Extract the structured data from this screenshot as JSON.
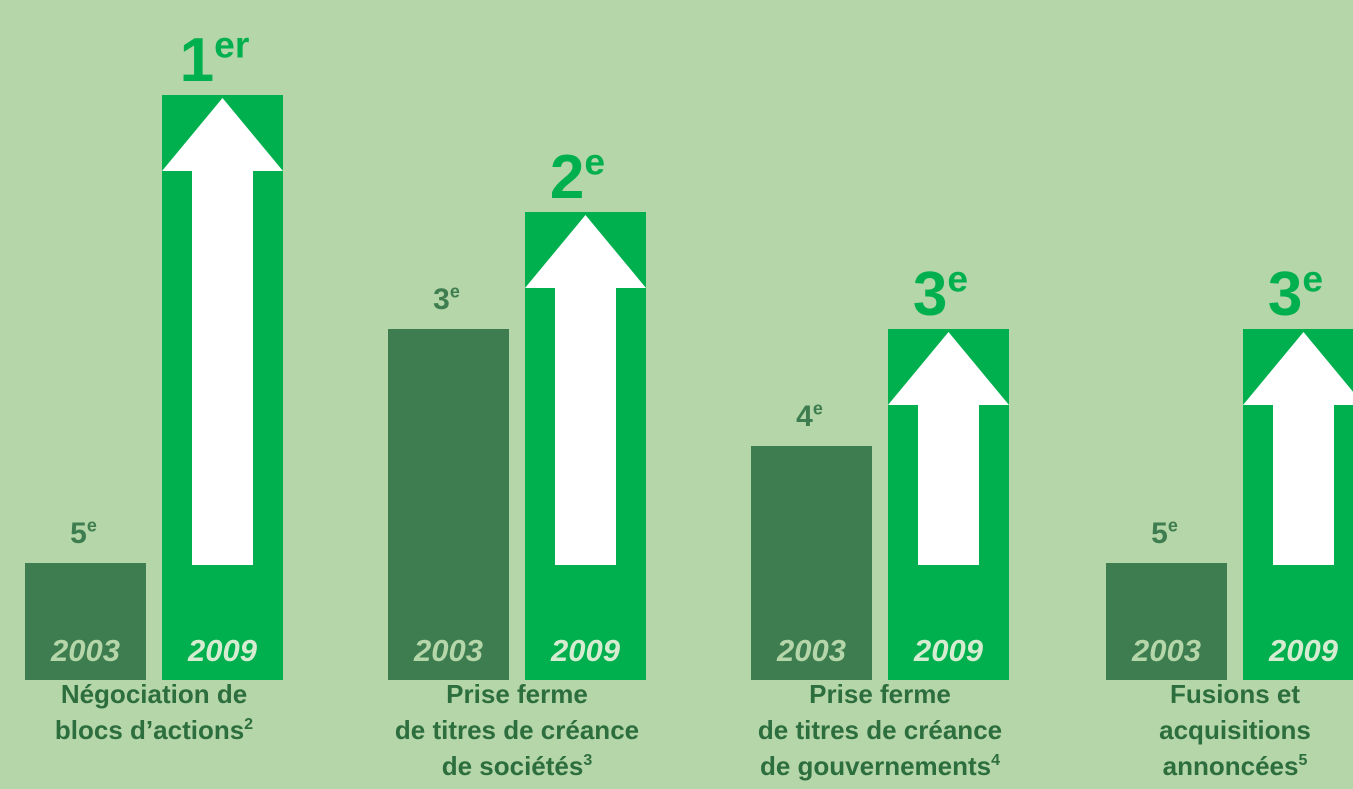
{
  "chart_data": {
    "type": "bar",
    "categories": [
      [
        "Négociation de",
        "blocs d’actions"
      ],
      [
        "Prise ferme",
        "de titres de créance",
        "de sociétés"
      ],
      [
        "Prise ferme",
        "de titres de créance",
        "de gouvernements"
      ],
      [
        "Fusions et",
        "acquisitions",
        "annoncées"
      ]
    ],
    "footnotes": [
      2,
      3,
      4,
      5
    ],
    "series": [
      {
        "name": "2003",
        "color": "#3d7d50",
        "values": [
          5,
          3,
          4,
          5
        ],
        "value_labels": [
          "5e",
          "3e",
          "4e",
          "5e"
        ]
      },
      {
        "name": "2009",
        "color": "#00b04f",
        "values": [
          1,
          2,
          3,
          3
        ],
        "value_labels": [
          "1er",
          "2e",
          "3e",
          "3e"
        ]
      }
    ],
    "ylim": [
      6,
      0
    ]
  }
}
